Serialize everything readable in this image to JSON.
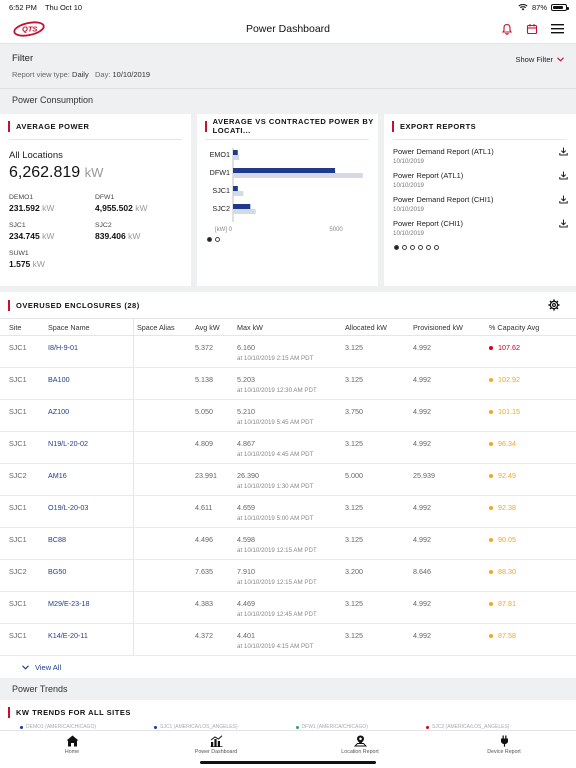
{
  "status": {
    "time": "6:52 PM",
    "date": "Thu Oct 10",
    "battery": "87%",
    "battery_level": 0.87
  },
  "header": {
    "title": "Power Dashboard",
    "logo_text": "QTS"
  },
  "filter": {
    "label": "Filter",
    "view_type_label": "Report view type:",
    "view_type": "Daily",
    "day_label": "Day:",
    "day": "10/10/2019",
    "show_filter": "Show Filter"
  },
  "consumption": {
    "section_title": "Power Consumption",
    "average": {
      "title": "AVERAGE POWER",
      "total_label": "All Locations",
      "total_value": "6,262.819",
      "total_unit": "kW",
      "sites": [
        {
          "name": "DEMO1",
          "value": "231.592",
          "unit": "kW"
        },
        {
          "name": "DFW1",
          "value": "4,955.502",
          "unit": "kW"
        },
        {
          "name": "SJC1",
          "value": "234.745",
          "unit": "kW"
        },
        {
          "name": "SJC2",
          "value": "839.406",
          "unit": "kW"
        },
        {
          "name": "SUW1",
          "value": "1.575",
          "unit": "kW"
        }
      ]
    },
    "avg_vs_contracted": {
      "title": "AVERAGE VS CONTRACTED POWER BY LOCATI...",
      "axis_unit": "[kW] 0",
      "axis_max": "5000",
      "colors": {
        "average": "#1f3a8a",
        "contracted": "#d4d9e6"
      }
    },
    "export": {
      "title": "EXPORT REPORTS",
      "items": [
        {
          "title": "Power Demand Report (ATL1)",
          "date": "10/10/2019"
        },
        {
          "title": "Power Report (ATL1)",
          "date": "10/10/2019"
        },
        {
          "title": "Power Demand Report (CHI1)",
          "date": "10/10/2019"
        },
        {
          "title": "Power Report (CHI1)",
          "date": "10/10/2019"
        }
      ]
    }
  },
  "chart_data": {
    "type": "bar",
    "title": "AVERAGE VS CONTRACTED POWER BY LOCATI...",
    "categories": [
      "EMO1",
      "DFW1",
      "SJC1",
      "SJC2"
    ],
    "series": [
      {
        "values": [
          230,
          4950,
          235,
          840
        ]
      },
      {
        "values": [
          300,
          6300,
          500,
          1100
        ]
      }
    ],
    "xlim": [
      0,
      6500
    ],
    "xlabel": "[kW]"
  },
  "overused": {
    "title": "OVERUSED ENCLOSURES (28)",
    "columns": [
      "Site",
      "Space Name",
      "Space Alias",
      "Avg kW",
      "Max kW",
      "Allocated kW",
      "Provisioned kW",
      "% Capacity Avg"
    ],
    "rows": [
      {
        "site": "SJC1",
        "space": "I8/H-9-01",
        "alias": "",
        "avg": "5.372",
        "max": "6.160",
        "max_at": "at 10/10/2019 2:15 AM PDT",
        "alloc": "3.125",
        "prov": "4.992",
        "pct": "107.62",
        "color": "#d0021b"
      },
      {
        "site": "SJC1",
        "space": "BA100",
        "alias": "",
        "avg": "5.138",
        "max": "5.203",
        "max_at": "at 10/10/2019 12:30 AM PDT",
        "alloc": "3.125",
        "prov": "4.992",
        "pct": "102.92",
        "color": "#f5a623"
      },
      {
        "site": "SJC1",
        "space": "AZ100",
        "alias": "",
        "avg": "5.050",
        "max": "5.210",
        "max_at": "at 10/10/2019 5:45 AM PDT",
        "alloc": "3.750",
        "prov": "4.992",
        "pct": "101.15",
        "color": "#f5a623"
      },
      {
        "site": "SJC1",
        "space": "N19/L-20-02",
        "alias": "",
        "avg": "4.809",
        "max": "4.867",
        "max_at": "at 10/10/2019 4:45 AM PDT",
        "alloc": "3.125",
        "prov": "4.992",
        "pct": "96.34",
        "color": "#f5a623"
      },
      {
        "site": "SJC2",
        "space": "AM16",
        "alias": "",
        "avg": "23.991",
        "max": "26.390",
        "max_at": "at 10/10/2019 1:30 AM PDT",
        "alloc": "5.000",
        "prov": "25.939",
        "pct": "92.49",
        "color": "#f5a623"
      },
      {
        "site": "SJC1",
        "space": "O19/L-20-03",
        "alias": "",
        "avg": "4.611",
        "max": "4.659",
        "max_at": "at 10/10/2019 5:00 AM PDT",
        "alloc": "3.125",
        "prov": "4.992",
        "pct": "92.38",
        "color": "#f5a623"
      },
      {
        "site": "SJC1",
        "space": "BC88",
        "alias": "",
        "avg": "4.496",
        "max": "4.598",
        "max_at": "at 10/10/2019 12:15 AM PDT",
        "alloc": "3.125",
        "prov": "4.992",
        "pct": "90.05",
        "color": "#f5a623"
      },
      {
        "site": "SJC2",
        "space": "BG50",
        "alias": "",
        "avg": "7.635",
        "max": "7.910",
        "max_at": "at 10/10/2019 12:15 AM PDT",
        "alloc": "3.200",
        "prov": "8.646",
        "pct": "88.30",
        "color": "#f5a623"
      },
      {
        "site": "SJC1",
        "space": "M29/E-23-18",
        "alias": "",
        "avg": "4.383",
        "max": "4.469",
        "max_at": "at 10/10/2019 12:45 AM PDT",
        "alloc": "3.125",
        "prov": "4.992",
        "pct": "87.81",
        "color": "#f5a623"
      },
      {
        "site": "SJC1",
        "space": "K14/E-20-11",
        "alias": "",
        "avg": "4.372",
        "max": "4.401",
        "max_at": "at 10/10/2019 4:15 AM PDT",
        "alloc": "3.125",
        "prov": "4.992",
        "pct": "87.58",
        "color": "#f5a623"
      }
    ],
    "view_all": "View All"
  },
  "trends": {
    "section_title": "Power Trends",
    "card_title": "KW TRENDS FOR ALL SITES",
    "legend": [
      {
        "label": "DEMO1 (AMERICA/CHICAGO)",
        "color": "#1f3a8a"
      },
      {
        "label": "SJC1 (AMERICA/LOS_ANGELES)",
        "color": "#1f3a8a"
      },
      {
        "label": "DFW1 (AMERICA/CHICAGO)",
        "color": "#2fa36b"
      },
      {
        "label": "SJC2 (AMERICA/LOS_ANGELES)",
        "color": "#d0021b"
      }
    ]
  },
  "tabs": [
    "Home",
    "Power Dashboard",
    "Location Report",
    "Device Report"
  ]
}
